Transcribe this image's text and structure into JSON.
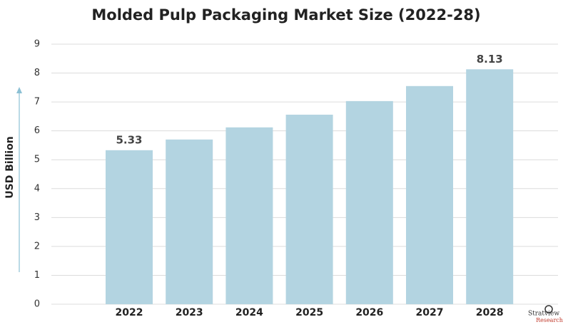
{
  "chart_data": {
    "type": "bar",
    "title": "Molded Pulp Packaging Market Size (2022-28)",
    "y_label": "USD Billion",
    "categories": [
      "2022",
      "2023",
      "2024",
      "2025",
      "2026",
      "2027",
      "2028"
    ],
    "values": [
      5.33,
      5.7,
      6.12,
      6.56,
      7.03,
      7.55,
      8.13
    ],
    "value_labels": [
      "5.33",
      null,
      null,
      null,
      null,
      null,
      "8.13"
    ],
    "color": "#b3d4e1",
    "ylim": [
      0,
      9
    ],
    "yticks": [
      0,
      1,
      2,
      3,
      4,
      5,
      6,
      7,
      8,
      9
    ],
    "grid": true
  },
  "logo": {
    "name": "Stratview",
    "subname": "Research"
  }
}
